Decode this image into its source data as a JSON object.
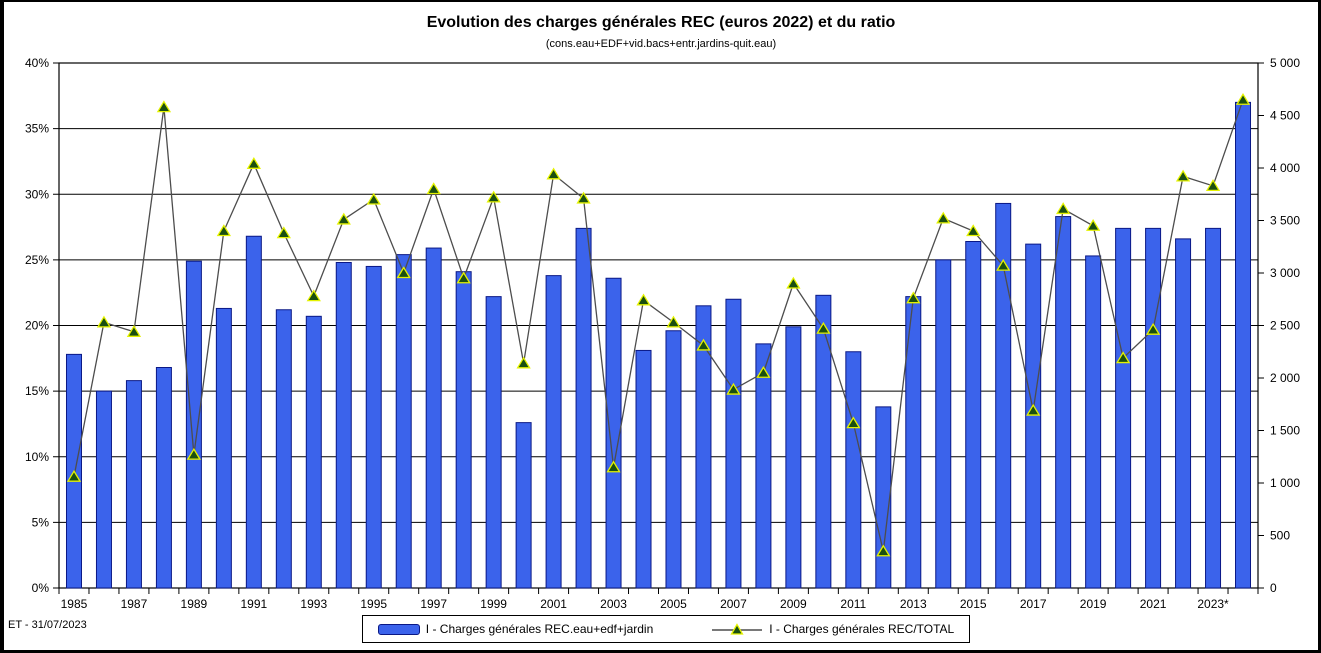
{
  "footer": {
    "note": "ET - 31/07/2023"
  },
  "chart_data": {
    "type": "bar",
    "combo": "bar+line",
    "title": "Evolution des charges générales REC (euros 2022) et du ratio",
    "subtitle": "(cons.eau+EDF+vid.bacs+entr.jardins-quit.eau)",
    "categories": [
      1985,
      1986,
      1987,
      1988,
      1989,
      1990,
      1991,
      1992,
      1993,
      1994,
      1995,
      1996,
      1997,
      1998,
      1999,
      2000,
      2001,
      2002,
      2003,
      2004,
      2005,
      2006,
      2007,
      2008,
      2009,
      2010,
      2011,
      2012,
      2013,
      2014,
      2015,
      2016,
      2017,
      2018,
      2019,
      2020,
      2021,
      2022,
      2023,
      2024
    ],
    "series": [
      {
        "name": "I - Charges générales REC.eau+edf+jardin",
        "type": "bar",
        "axis": "left",
        "unit": "%",
        "values": [
          17.8,
          15.0,
          15.8,
          16.8,
          24.9,
          21.3,
          26.8,
          21.2,
          20.7,
          24.8,
          24.5,
          25.4,
          25.9,
          24.1,
          22.2,
          12.6,
          23.8,
          27.4,
          23.6,
          18.1,
          19.6,
          21.5,
          22.0,
          18.6,
          19.9,
          22.3,
          18.0,
          13.8,
          22.2,
          25.0,
          26.4,
          29.3,
          26.2,
          28.3,
          25.3,
          27.4,
          27.4,
          26.6,
          27.4,
          37.0
        ]
      },
      {
        "name": "I - Charges générales REC/TOTAL",
        "type": "line",
        "axis": "right",
        "values": [
          1060,
          2530,
          2440,
          4580,
          1270,
          3400,
          4040,
          3380,
          2780,
          3510,
          3700,
          3000,
          3800,
          2950,
          3720,
          2140,
          3940,
          3710,
          1150,
          2740,
          2530,
          2310,
          1890,
          2050,
          2900,
          2470,
          1570,
          350,
          2760,
          3520,
          3400,
          3070,
          1690,
          3610,
          3450,
          2190,
          2460,
          3920,
          3830,
          4650
        ]
      }
    ],
    "left_axis": {
      "min": 0,
      "max": 40,
      "step": 5,
      "labels": [
        "0%",
        "5%",
        "10%",
        "15%",
        "20%",
        "25%",
        "30%",
        "35%",
        "40%"
      ]
    },
    "right_axis": {
      "min": 0,
      "max": 5000,
      "step": 500,
      "labels": [
        "0",
        "500",
        "1 000",
        "1 500",
        "2 000",
        "2 500",
        "3 000",
        "3 500",
        "4 000",
        "4 500",
        "5 000"
      ]
    },
    "x_ticks": {
      "positions": [
        0,
        2,
        4,
        6,
        8,
        10,
        12,
        14,
        16,
        18,
        20,
        22,
        24,
        26,
        28,
        30,
        32,
        34,
        36,
        38
      ],
      "labels": [
        "1985",
        "1987",
        "1989",
        "1991",
        "1993",
        "1995",
        "1997",
        "1999",
        "2001",
        "2003",
        "2005",
        "2007",
        "2009",
        "2011",
        "2013",
        "2015",
        "2017",
        "2019",
        "2021",
        "2023*"
      ]
    },
    "grid": "horizontal",
    "legend_position": "bottom",
    "colors": {
      "bar_fill": "#3B63EB",
      "bar_stroke": "#0A1885",
      "line": "#4D4D4D",
      "marker_fill": "#1A4F10",
      "marker_stroke": "#E4F200",
      "grid": "#000000",
      "frame": "#000000",
      "background": "#FFFFFF",
      "text": "#000000"
    }
  }
}
